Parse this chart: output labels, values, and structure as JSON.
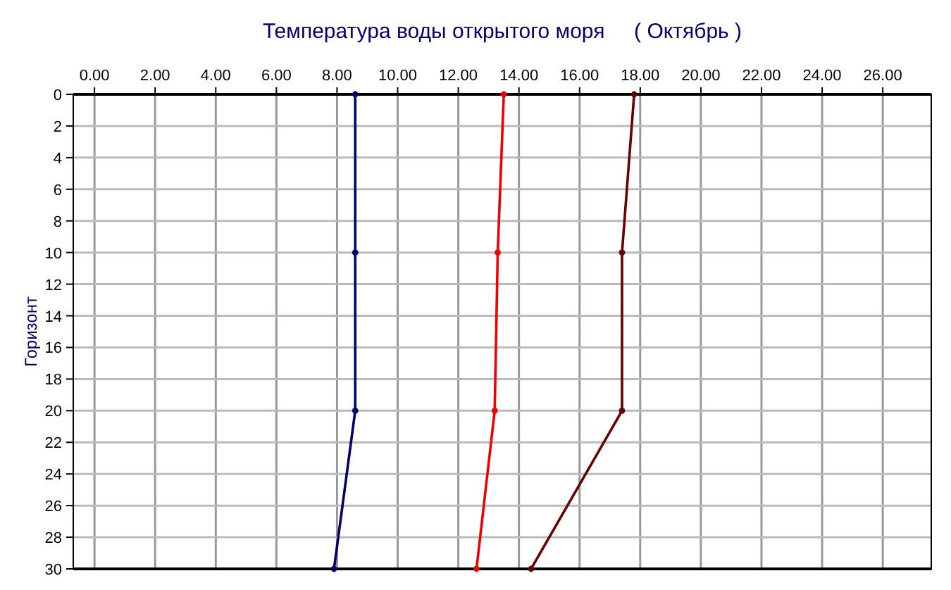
{
  "chart_data": {
    "type": "line",
    "title": "Температура воды открытого моря     ( Октябрь )",
    "ylabel": "Горизонт",
    "series": [
      {
        "color": "#000066",
        "x": [
          8.6,
          8.6,
          8.6,
          7.9
        ],
        "values": [
          0,
          10,
          20,
          30
        ]
      },
      {
        "color": "#ee0000",
        "x": [
          13.5,
          13.3,
          13.2,
          12.6
        ],
        "values": [
          0,
          10,
          20,
          30
        ]
      },
      {
        "color": "#660000",
        "x": [
          17.8,
          17.4,
          17.4,
          14.4
        ],
        "values": [
          0,
          10,
          20,
          30
        ]
      }
    ],
    "xlim": [
      -0.7,
      27.6
    ],
    "xticks": [
      {
        "value": 0,
        "label": "0.00"
      },
      {
        "value": 2,
        "label": "2.00"
      },
      {
        "value": 4,
        "label": "4.00"
      },
      {
        "value": 6,
        "label": "6.00"
      },
      {
        "value": 8,
        "label": "8.00"
      },
      {
        "value": 10,
        "label": "10.00"
      },
      {
        "value": 12,
        "label": "12.00"
      },
      {
        "value": 14,
        "label": "14.00"
      },
      {
        "value": 16,
        "label": "16.00"
      },
      {
        "value": 18,
        "label": "18.00"
      },
      {
        "value": 20,
        "label": "20.00"
      },
      {
        "value": 22,
        "label": "22.00"
      },
      {
        "value": 24,
        "label": "24.00"
      },
      {
        "value": 26,
        "label": "26.00"
      }
    ],
    "ylim": [
      30,
      0
    ],
    "yticks": [
      0,
      2,
      4,
      6,
      8,
      10,
      12,
      14,
      16,
      18,
      20,
      22,
      24,
      26,
      28,
      30
    ],
    "grid": true,
    "marker": "circle",
    "line_style": "solid"
  }
}
